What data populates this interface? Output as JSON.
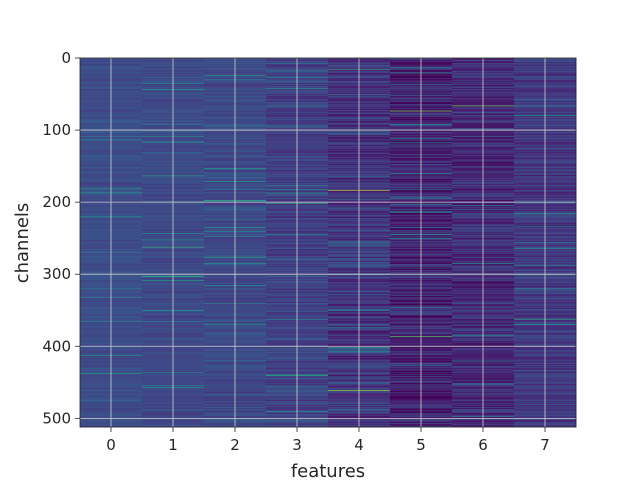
{
  "chart_data": {
    "type": "heatmap",
    "title": "",
    "xlabel": "features",
    "ylabel": "channels",
    "x_categories": [
      "0",
      "1",
      "2",
      "3",
      "4",
      "5",
      "6",
      "7"
    ],
    "y_range": [
      0,
      512
    ],
    "y_ticks": [
      "0",
      "100",
      "200",
      "300",
      "400",
      "500"
    ],
    "y_axis_inverted": true,
    "rows": 512,
    "colormap": "viridis",
    "color_scale": {
      "low": "#3b4d8c",
      "mid": "#2e8c8c",
      "high": "#e6e419"
    },
    "grid": true,
    "feature_base_intensity": [
      0.26,
      0.25,
      0.25,
      0.22,
      0.18,
      0.12,
      0.15,
      0.19
    ],
    "feature_variability": [
      0.05,
      0.05,
      0.07,
      0.1,
      0.13,
      0.15,
      0.12,
      0.1
    ],
    "notable_highlights": [
      {
        "feature": 1,
        "channel": 262,
        "intensity": 0.72
      },
      {
        "feature": 4,
        "channel": 183,
        "intensity": 0.9
      },
      {
        "feature": 4,
        "channel": 461,
        "intensity": 0.88
      },
      {
        "feature": 5,
        "channel": 73,
        "intensity": 0.85
      },
      {
        "feature": 5,
        "channel": 386,
        "intensity": 0.8
      },
      {
        "feature": 6,
        "channel": 66,
        "intensity": 0.82
      },
      {
        "feature": 4,
        "channel": 15,
        "intensity": 0.7
      },
      {
        "feature": 3,
        "channel": 440,
        "intensity": 0.68
      },
      {
        "feature": 7,
        "channel": 362,
        "intensity": 0.66
      }
    ]
  }
}
